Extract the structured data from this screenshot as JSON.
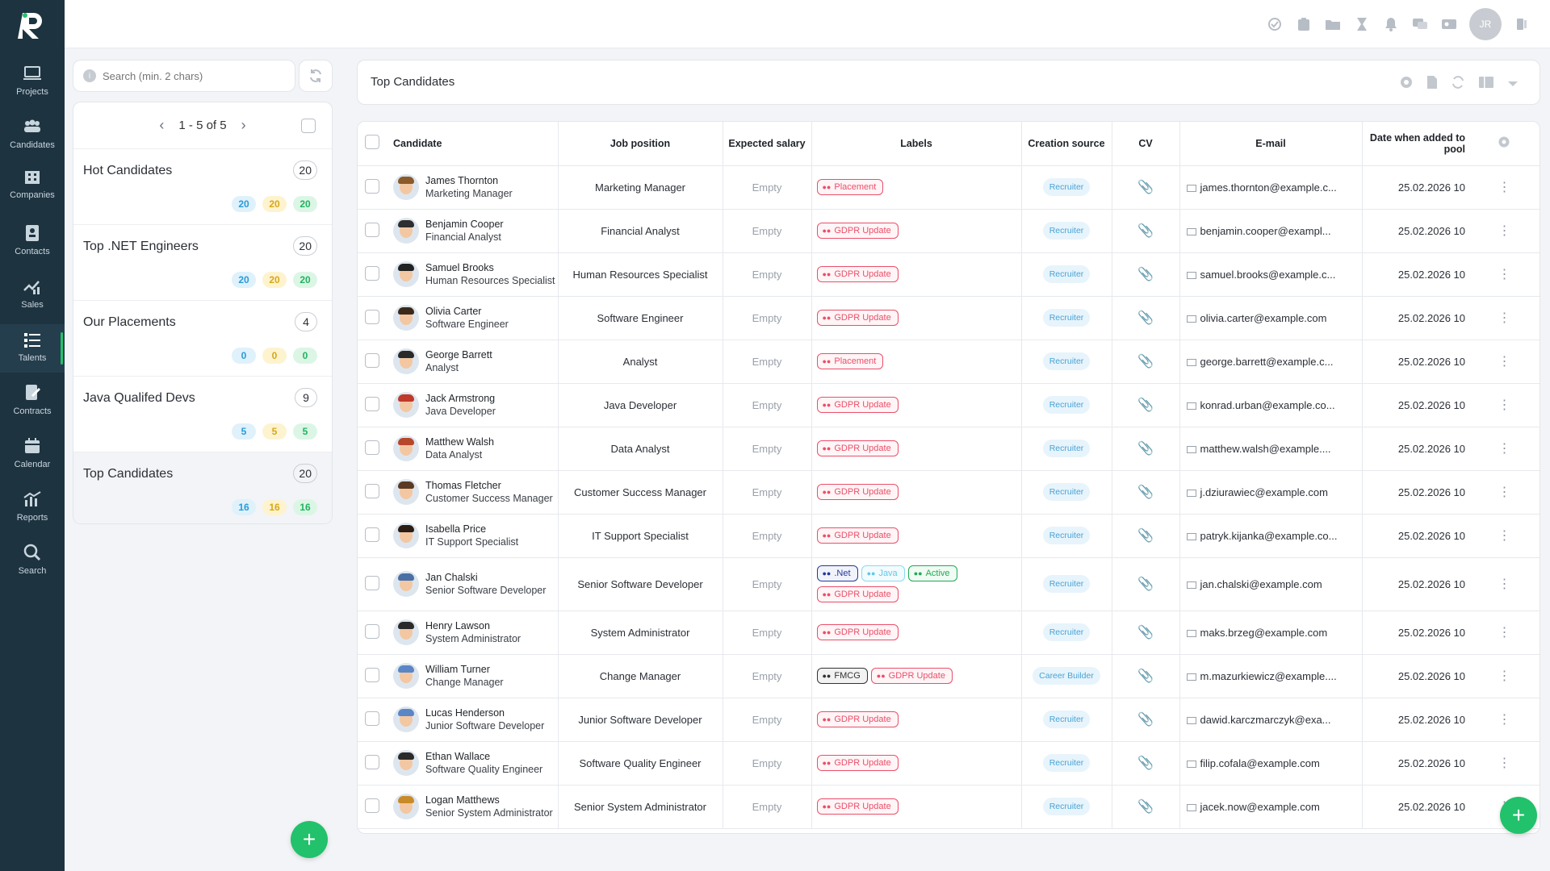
{
  "app": {
    "logo_letter": "R"
  },
  "nav": [
    {
      "label": "Projects",
      "icon": "laptop-icon"
    },
    {
      "label": "Candidates",
      "icon": "people-icon"
    },
    {
      "label": "Companies",
      "icon": "building-icon"
    },
    {
      "label": "Contacts",
      "icon": "contact-card-icon"
    },
    {
      "label": "Sales",
      "icon": "sales-chart-icon"
    },
    {
      "label": "Talents",
      "icon": "list-icon",
      "active": true
    },
    {
      "label": "Contracts",
      "icon": "contract-icon"
    },
    {
      "label": "Calendar",
      "icon": "calendar-icon"
    },
    {
      "label": "Reports",
      "icon": "reports-icon"
    },
    {
      "label": "Search",
      "icon": "search-icon"
    }
  ],
  "topbar": {
    "avatar_initials": "JR"
  },
  "search": {
    "placeholder": "Search (min. 2 chars)",
    "value": ""
  },
  "pager": {
    "text": "1 - 5 of 5"
  },
  "pools": [
    {
      "name": "Hot Candidates",
      "count": "20",
      "badges": [
        "20",
        "20",
        "20"
      ]
    },
    {
      "name": "Top .NET Engineers",
      "count": "20",
      "badges": [
        "20",
        "20",
        "20"
      ]
    },
    {
      "name": "Our Placements",
      "count": "4",
      "badges": [
        "0",
        "0",
        "0"
      ]
    },
    {
      "name": "Java Qualifed Devs",
      "count": "9",
      "badges": [
        "5",
        "5",
        "5"
      ]
    },
    {
      "name": "Top Candidates",
      "count": "20",
      "badges": [
        "16",
        "16",
        "16"
      ],
      "active": true
    }
  ],
  "main": {
    "title": "Top Candidates"
  },
  "columns": {
    "candidate": "Candidate",
    "job_position": "Job position",
    "expected_salary": "Expected salary",
    "labels": "Labels",
    "creation_source": "Creation source",
    "cv": "CV",
    "email": "E-mail",
    "date_added": "Date when added to pool"
  },
  "colors": {
    "sidebar": "#1d3340",
    "accent_green": "#22c16b",
    "label_red": "#e9506a"
  },
  "rows": [
    {
      "name": "James Thornton",
      "role": "Marketing Manager",
      "job": "Marketing Manager",
      "salary": "Empty",
      "labels": [
        {
          "text": "Placement",
          "c": "red"
        }
      ],
      "source": "Recruiter",
      "email": "james.thornton@example.c...",
      "date": "25.02.2026 10",
      "hair": "#8a5a2b"
    },
    {
      "name": "Benjamin Cooper",
      "role": "Financial Analyst",
      "job": "Financial Analyst",
      "salary": "Empty",
      "labels": [
        {
          "text": "GDPR Update",
          "c": "red"
        }
      ],
      "source": "Recruiter",
      "email": "benjamin.cooper@exampl...",
      "date": "25.02.2026 10",
      "hair": "#2e2e2e"
    },
    {
      "name": "Samuel Brooks",
      "role": "Human Resources Specialist",
      "job": "Human Resources Specialist",
      "salary": "Empty",
      "labels": [
        {
          "text": "GDPR Update",
          "c": "red"
        }
      ],
      "source": "Recruiter",
      "email": "samuel.brooks@example.c...",
      "date": "25.02.2026 10",
      "hair": "#222222"
    },
    {
      "name": "Olivia Carter",
      "role": "Software Engineer",
      "job": "Software Engineer",
      "salary": "Empty",
      "labels": [
        {
          "text": "GDPR Update",
          "c": "red"
        }
      ],
      "source": "Recruiter",
      "email": "olivia.carter@example.com",
      "date": "25.02.2026 10",
      "hair": "#3b2a1a"
    },
    {
      "name": "George Barrett",
      "role": "Analyst",
      "job": "Analyst",
      "salary": "Empty",
      "labels": [
        {
          "text": "Placement",
          "c": "red"
        }
      ],
      "source": "Recruiter",
      "email": "george.barrett@example.c...",
      "date": "25.02.2026 10",
      "hair": "#2a2a2a"
    },
    {
      "name": "Jack Armstrong",
      "role": "Java Developer",
      "job": "Java Developer",
      "salary": "Empty",
      "labels": [
        {
          "text": "GDPR Update",
          "c": "red"
        }
      ],
      "source": "Recruiter",
      "email": "konrad.urban@example.co...",
      "date": "25.02.2026 10",
      "hair": "#c0392b"
    },
    {
      "name": "Matthew Walsh",
      "role": "Data Analyst",
      "job": "Data Analyst",
      "salary": "Empty",
      "labels": [
        {
          "text": "GDPR Update",
          "c": "red"
        }
      ],
      "source": "Recruiter",
      "email": "matthew.walsh@example....",
      "date": "25.02.2026 10",
      "hair": "#b7472a"
    },
    {
      "name": "Thomas Fletcher",
      "role": "Customer Success Manager",
      "job": "Customer Success Manager",
      "salary": "Empty",
      "labels": [
        {
          "text": "GDPR Update",
          "c": "red"
        }
      ],
      "source": "Recruiter",
      "email": "j.dziurawiec@example.com",
      "date": "25.02.2026 10",
      "hair": "#5a3a22"
    },
    {
      "name": "Isabella Price",
      "role": "IT Support Specialist",
      "job": "IT Support Specialist",
      "salary": "Empty",
      "labels": [
        {
          "text": "GDPR Update",
          "c": "red"
        }
      ],
      "source": "Recruiter",
      "email": "patryk.kijanka@example.co...",
      "date": "25.02.2026 10",
      "hair": "#2b1d14"
    },
    {
      "name": "Jan Chalski",
      "role": "Senior Software Developer",
      "job": "Senior Software Developer",
      "salary": "Empty",
      "labels": [
        {
          "text": ".Net",
          "c": "navy"
        },
        {
          "text": "Java",
          "c": "cyan"
        },
        {
          "text": "Active",
          "c": "green"
        },
        {
          "text": "GDPR Update",
          "c": "red"
        }
      ],
      "source": "Recruiter",
      "email": "jan.chalski@example.com",
      "date": "25.02.2026 10",
      "hair": "#4a6fa5",
      "tall": true
    },
    {
      "name": "Henry Lawson",
      "role": "System Administrator",
      "job": "System Administrator",
      "salary": "Empty",
      "labels": [
        {
          "text": "GDPR Update",
          "c": "red"
        }
      ],
      "source": "Recruiter",
      "email": "maks.brzeg@example.com",
      "date": "25.02.2026 10",
      "hair": "#2a2a2a"
    },
    {
      "name": "William Turner",
      "role": "Change Manager",
      "job": "Change Manager",
      "salary": "Empty",
      "labels": [
        {
          "text": "FMCG",
          "c": "dark"
        },
        {
          "text": "GDPR Update",
          "c": "red"
        }
      ],
      "source": "Career Builder",
      "email": "m.mazurkiewicz@example....",
      "date": "25.02.2026 10",
      "hair": "#5b86c5"
    },
    {
      "name": "Lucas Henderson",
      "role": "Junior Software Developer",
      "job": "Junior Software Developer",
      "salary": "Empty",
      "labels": [
        {
          "text": "GDPR Update",
          "c": "red"
        }
      ],
      "source": "Recruiter",
      "email": "dawid.karczmarczyk@exa...",
      "date": "25.02.2026 10",
      "hair": "#5b86c5"
    },
    {
      "name": "Ethan Wallace",
      "role": "Software Quality Engineer",
      "job": "Software Quality Engineer",
      "salary": "Empty",
      "labels": [
        {
          "text": "GDPR Update",
          "c": "red"
        }
      ],
      "source": "Recruiter",
      "email": "filip.cofala@example.com",
      "date": "25.02.2026 10",
      "hair": "#2a2a2a"
    },
    {
      "name": "Logan Matthews",
      "role": "Senior System Administrator",
      "job": "Senior System Administrator",
      "salary": "Empty",
      "labels": [
        {
          "text": "GDPR Update",
          "c": "red"
        }
      ],
      "source": "Recruiter",
      "email": "jacek.now@example.com",
      "date": "25.02.2026 10",
      "hair": "#c98a2a"
    }
  ]
}
